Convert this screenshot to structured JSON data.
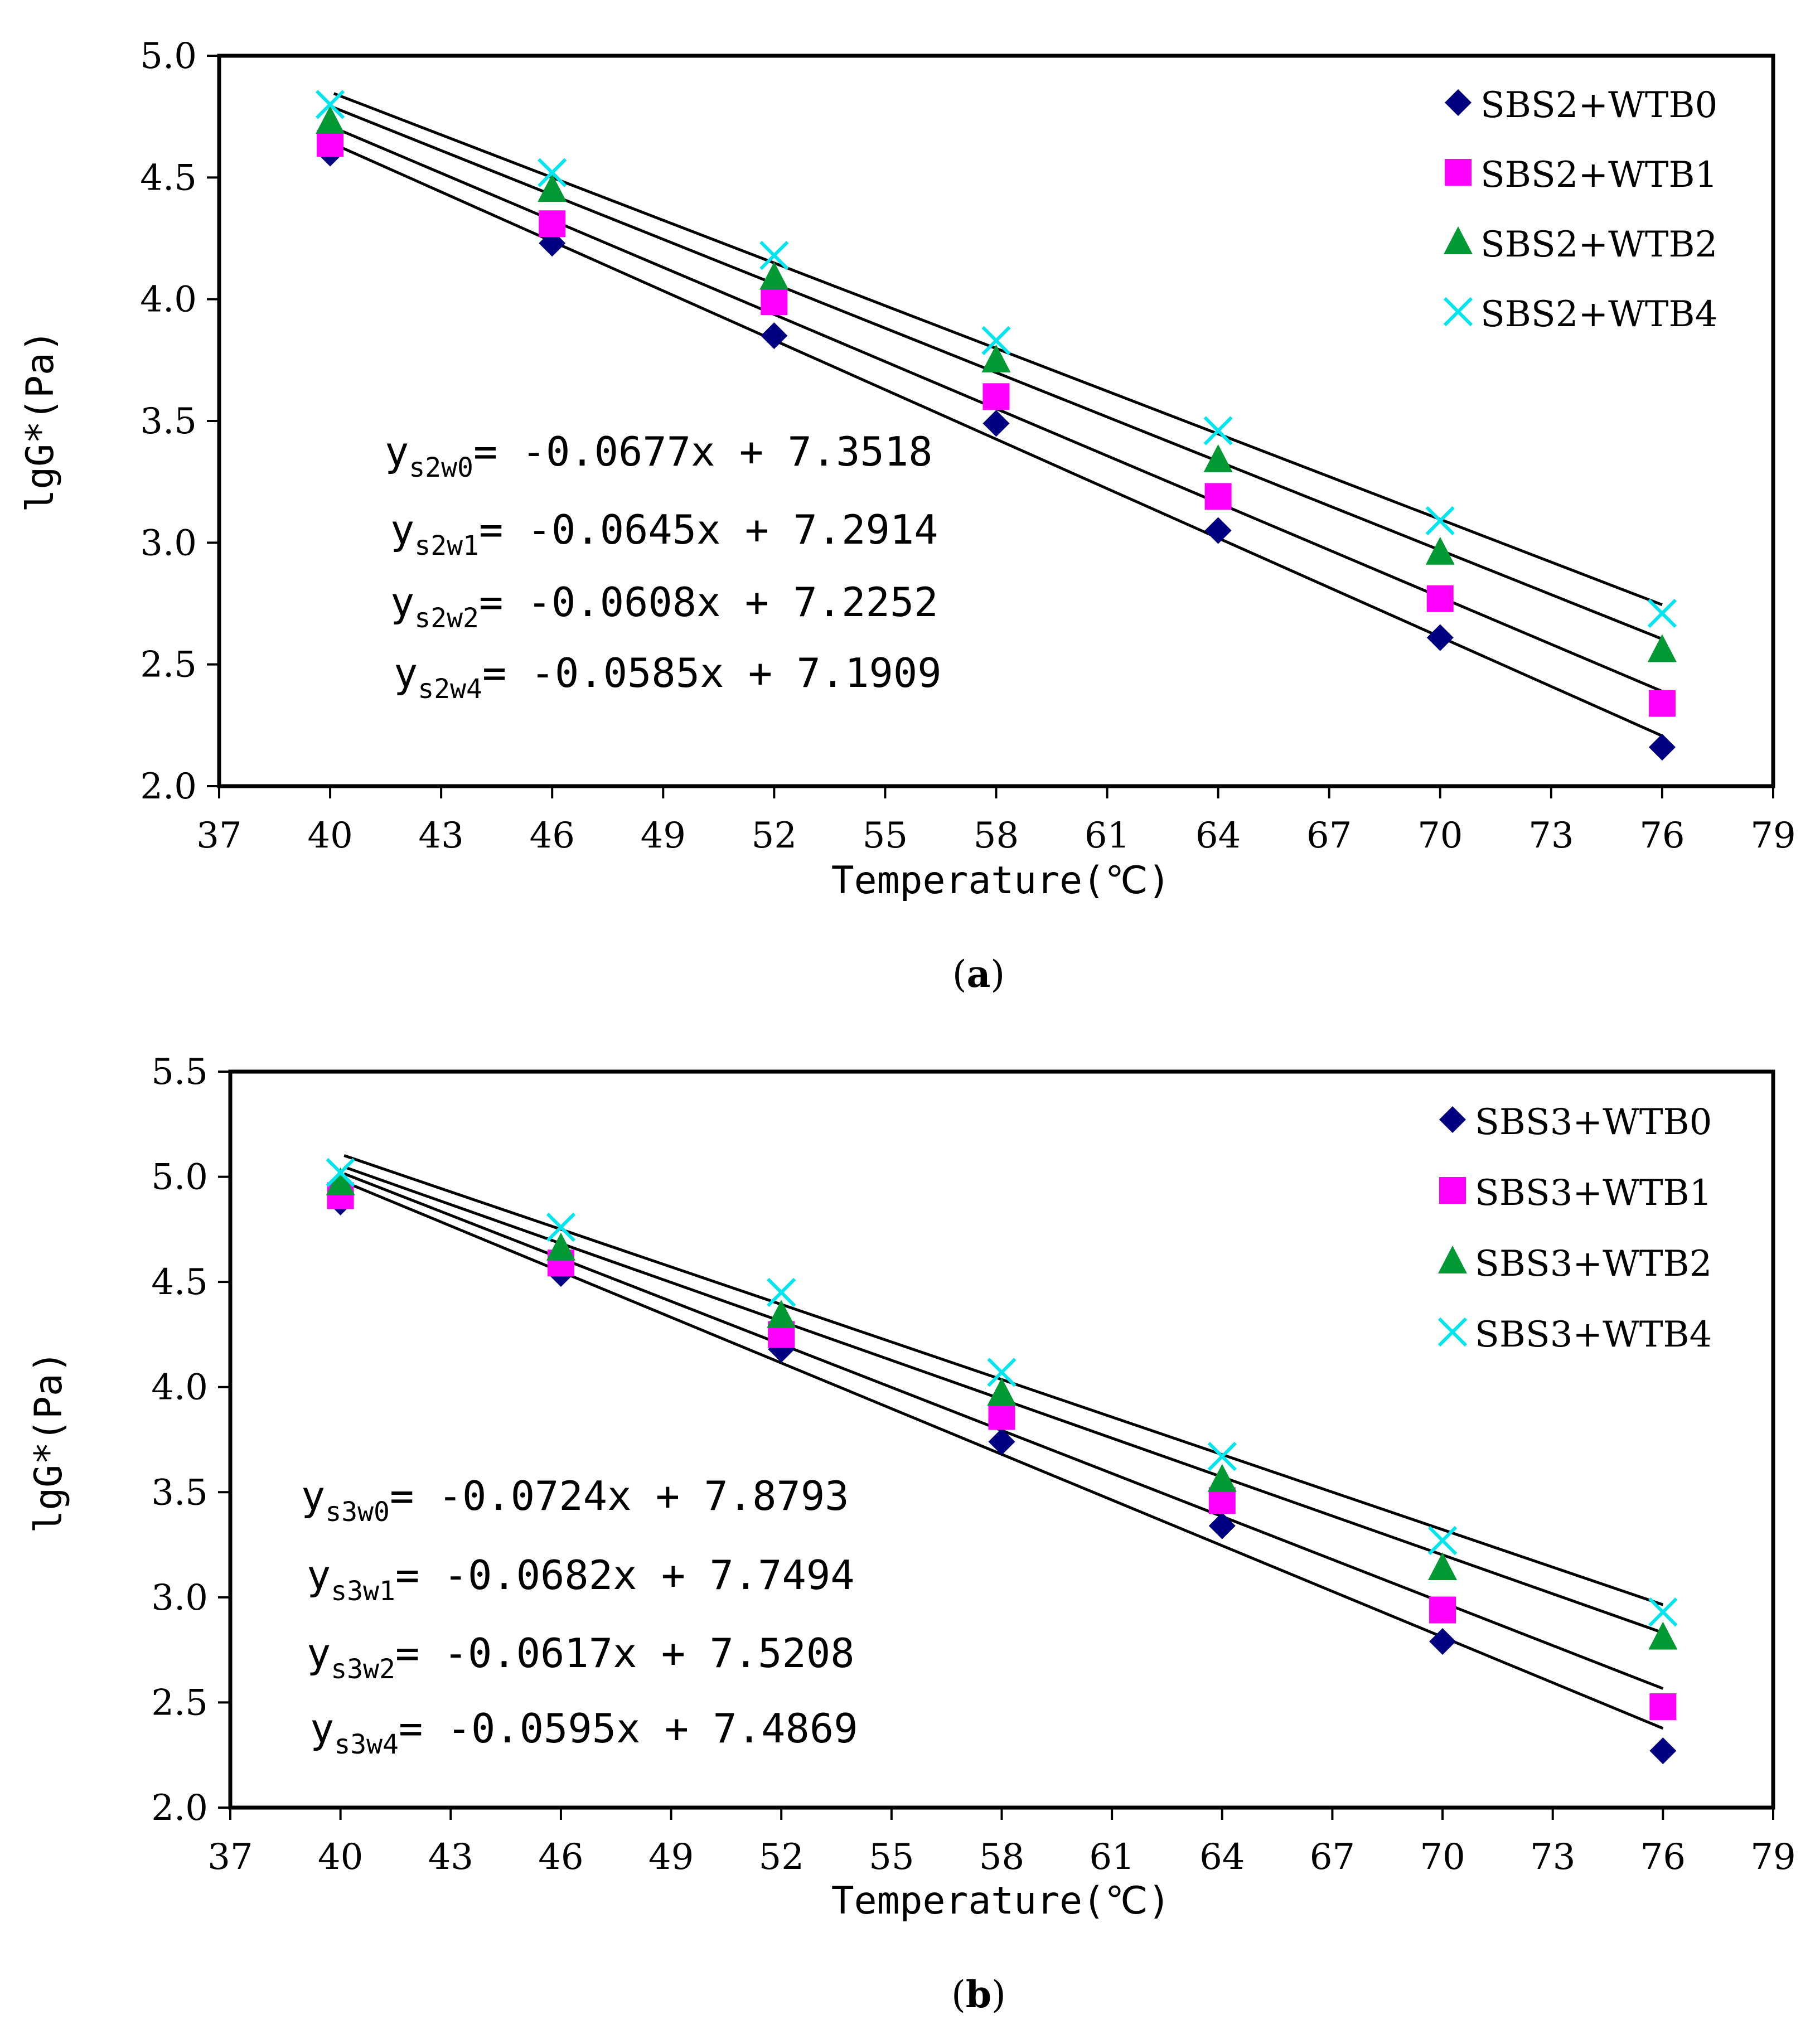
{
  "chart_data": [
    {
      "type": "scatter",
      "panel_label": "a",
      "xlabel": "Temperature(℃)",
      "ylabel": "lgG*(Pa)",
      "xlim": [
        37,
        79
      ],
      "ylim": [
        2.0,
        5.0
      ],
      "xticks": [
        "37",
        "40",
        "43",
        "46",
        "49",
        "52",
        "55",
        "58",
        "61",
        "64",
        "67",
        "70",
        "73",
        "76",
        "79"
      ],
      "yticks": [
        "2.0",
        "2.5",
        "3.0",
        "3.5",
        "4.0",
        "4.5",
        "5.0"
      ],
      "x": [
        40,
        46,
        52,
        58,
        64,
        70,
        76
      ],
      "legend_position": "top-right",
      "series": [
        {
          "name": "SBS2+WTB0",
          "marker": "diamond",
          "color": "#000080",
          "values": [
            4.6,
            4.23,
            3.85,
            3.49,
            3.05,
            2.61,
            2.16
          ],
          "fit": {
            "slope": -0.0677,
            "intercept": 7.3518
          }
        },
        {
          "name": "SBS2+WTB1",
          "marker": "square",
          "color": "#ff00ff",
          "values": [
            4.64,
            4.31,
            3.99,
            3.6,
            3.19,
            2.77,
            2.34
          ],
          "fit": {
            "slope": -0.0645,
            "intercept": 7.2914
          }
        },
        {
          "name": "SBS2+WTB2",
          "marker": "triangle",
          "color": "#009933",
          "values": [
            4.73,
            4.45,
            4.09,
            3.75,
            3.34,
            2.96,
            2.56
          ],
          "fit": {
            "slope": -0.0608,
            "intercept": 7.2252
          }
        },
        {
          "name": "SBS2+WTB4",
          "marker": "x",
          "color": "#00e5ee",
          "values": [
            4.8,
            4.52,
            4.18,
            3.83,
            3.46,
            3.09,
            2.71
          ],
          "fit": {
            "slope": -0.0585,
            "intercept": 7.1909
          }
        }
      ],
      "equations": [
        {
          "prefix": "y",
          "sub": "s2w0",
          "rest": "= -0.0677x + 7.3518"
        },
        {
          "prefix": "y",
          "sub": "s2w1",
          "rest": "= -0.0645x + 7.2914"
        },
        {
          "prefix": "y",
          "sub": "s2w2",
          "rest": "= -0.0608x + 7.2252"
        },
        {
          "prefix": "y",
          "sub": "s2w4",
          "rest": "= -0.0585x + 7.1909"
        }
      ]
    },
    {
      "type": "scatter",
      "panel_label": "b",
      "xlabel": "Temperature(℃)",
      "ylabel": "lgG*(Pa)",
      "xlim": [
        37,
        79
      ],
      "ylim": [
        2.0,
        5.5
      ],
      "xticks": [
        "37",
        "40",
        "43",
        "46",
        "49",
        "52",
        "55",
        "58",
        "61",
        "64",
        "67",
        "70",
        "73",
        "76",
        "79"
      ],
      "yticks": [
        "2.0",
        "2.5",
        "3.0",
        "3.5",
        "4.0",
        "4.5",
        "5.0",
        "5.5"
      ],
      "x": [
        40,
        46,
        52,
        58,
        64,
        70,
        76
      ],
      "legend_position": "top-right",
      "series": [
        {
          "name": "SBS3+WTB0",
          "marker": "diamond",
          "color": "#000080",
          "values": [
            4.88,
            4.54,
            4.18,
            3.74,
            3.34,
            2.79,
            2.27
          ],
          "fit": {
            "slope": -0.0724,
            "intercept": 7.8793
          }
        },
        {
          "name": "SBS3+WTB1",
          "marker": "square",
          "color": "#ff00ff",
          "values": [
            4.91,
            4.59,
            4.25,
            3.86,
            3.46,
            2.94,
            2.48
          ],
          "fit": {
            "slope": -0.0682,
            "intercept": 7.7494
          }
        },
        {
          "name": "SBS3+WTB2",
          "marker": "triangle",
          "color": "#009933",
          "values": [
            4.97,
            4.66,
            4.34,
            3.97,
            3.56,
            3.14,
            2.81
          ],
          "fit": {
            "slope": -0.0617,
            "intercept": 7.5208
          }
        },
        {
          "name": "SBS3+WTB4",
          "marker": "x",
          "color": "#00e5ee",
          "values": [
            5.02,
            4.76,
            4.45,
            4.07,
            3.67,
            3.27,
            2.93
          ],
          "fit": {
            "slope": -0.0595,
            "intercept": 7.4869
          }
        }
      ],
      "equations": [
        {
          "prefix": "y",
          "sub": "s3w0",
          "rest": "= -0.0724x + 7.8793"
        },
        {
          "prefix": "y",
          "sub": "s3w1",
          "rest": "= -0.0682x + 7.7494"
        },
        {
          "prefix": "y",
          "sub": "s3w2",
          "rest": "= -0.0617x + 7.5208"
        },
        {
          "prefix": "y",
          "sub": "s3w4",
          "rest": "= -0.0595x + 7.4869"
        }
      ]
    }
  ]
}
